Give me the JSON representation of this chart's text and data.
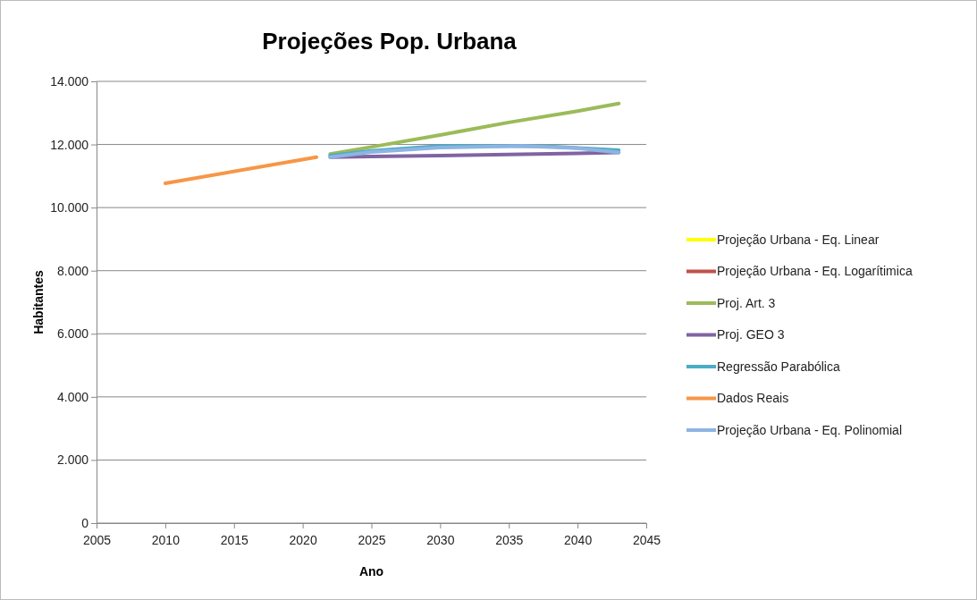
{
  "chart_data": {
    "type": "line",
    "title": "Projeções Pop. Urbana",
    "xlabel": "Ano",
    "ylabel": "Habitantes",
    "xlim": [
      2005,
      2045
    ],
    "xticks": [
      2005,
      2010,
      2015,
      2020,
      2025,
      2030,
      2035,
      2040,
      2045
    ],
    "ylim": [
      0,
      14000
    ],
    "yticks": [
      0,
      {
        "value": 2000,
        "label": "2.000"
      },
      {
        "value": 4000,
        "label": "4.000"
      },
      {
        "value": 6000,
        "label": "6.000"
      },
      {
        "value": 8000,
        "label": "8.000"
      },
      {
        "value": 10000,
        "label": "10.000"
      },
      {
        "value": 12000,
        "label": "12.000"
      },
      {
        "value": 14000,
        "label": "14.000"
      }
    ],
    "grid": "y",
    "legend": "right",
    "marker": "none",
    "line_style": "solid",
    "series": [
      {
        "name": "Projeção Urbana - Eq. Linear",
        "color": "#ffff00"
      },
      {
        "name": "Projeção Urbana - Eq. Logarítimica",
        "color": "#c0504d"
      },
      {
        "name": "Proj. Art. 3",
        "color": "#9bbb59",
        "x": [
          2022,
          2025,
          2030,
          2035,
          2040,
          2043
        ],
        "values": [
          11700,
          11920,
          12300,
          12700,
          13060,
          13300
        ]
      },
      {
        "name": "Proj. GEO 3",
        "color": "#8064a2",
        "x": [
          2022,
          2025,
          2030,
          2035,
          2040,
          2043
        ],
        "values": [
          11600,
          11620,
          11650,
          11680,
          11720,
          11750
        ]
      },
      {
        "name": "Regressão Parabólica",
        "color": "#4bacc6",
        "x": [
          2022,
          2025,
          2030,
          2035,
          2038,
          2043
        ],
        "values": [
          11650,
          11800,
          11950,
          11950,
          11940,
          11820
        ]
      },
      {
        "name": "Dados Reais",
        "color": "#f79646",
        "x": [
          2010,
          2021
        ],
        "values": [
          10770,
          11600
        ]
      },
      {
        "name": "Projeção Urbana - Eq. Polinomial",
        "color": "#8eb4e3",
        "x": [
          2022,
          2025,
          2030,
          2036,
          2040,
          2043
        ],
        "values": [
          11600,
          11760,
          11900,
          11950,
          11880,
          11750
        ]
      }
    ]
  }
}
